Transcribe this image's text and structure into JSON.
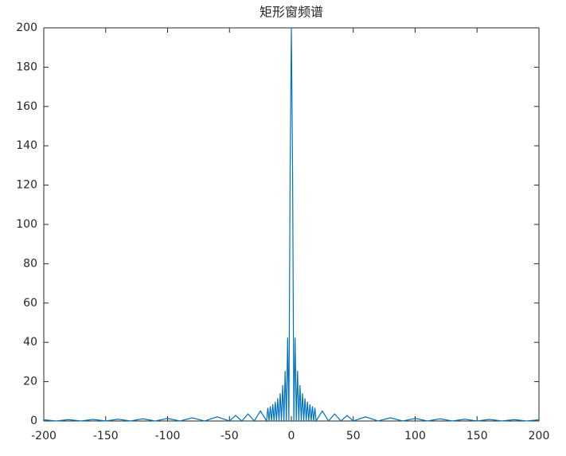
{
  "chart_data": {
    "type": "line",
    "title": "矩形窗频谱",
    "x": [
      -200,
      -190,
      -180,
      -170,
      -160,
      -150,
      -140,
      -130,
      -120,
      -110,
      -100,
      -90,
      -80,
      -70,
      -60,
      -50,
      -45,
      -40,
      -35,
      -30,
      -25,
      -20,
      -19,
      -18,
      -17,
      -16,
      -15,
      -14,
      -13,
      -12,
      -11,
      -10,
      -9,
      -8,
      -7,
      -6,
      -5,
      -4,
      -3,
      -2,
      -1,
      0,
      1,
      2,
      3,
      4,
      5,
      6,
      7,
      8,
      9,
      10,
      11,
      12,
      13,
      14,
      15,
      16,
      17,
      18,
      19,
      20,
      25,
      30,
      35,
      40,
      45,
      50,
      60,
      70,
      80,
      90,
      100,
      110,
      120,
      130,
      140,
      150,
      160,
      170,
      180,
      190,
      200
    ],
    "values": [
      0.6,
      0,
      0.7,
      0,
      0.8,
      0,
      0.9,
      0,
      1.1,
      0,
      1.3,
      0,
      1.6,
      0,
      2.1,
      0,
      2.8,
      0,
      3.6,
      0,
      5.1,
      0,
      6.7,
      0,
      7.5,
      0,
      8.5,
      0,
      9.8,
      0,
      11.6,
      0,
      14.1,
      0,
      18.2,
      0,
      25.5,
      0,
      42.4,
      0,
      127,
      200,
      127,
      0,
      42.4,
      0,
      25.5,
      0,
      18.2,
      0,
      14.1,
      0,
      11.6,
      0,
      9.8,
      0,
      8.5,
      0,
      7.5,
      0,
      6.7,
      0,
      5.1,
      0,
      3.6,
      0,
      2.8,
      0,
      2.1,
      0,
      1.6,
      0,
      1.3,
      0,
      1.1,
      0,
      0.9,
      0,
      0.8,
      0,
      0.7,
      0,
      0.6
    ],
    "color": "#0072bd",
    "xlim": [
      -200,
      200
    ],
    "xticks": [
      -200,
      -150,
      -100,
      -50,
      0,
      50,
      100,
      150,
      200
    ],
    "ylim": [
      0,
      200
    ],
    "yticks": [
      0,
      20,
      40,
      60,
      80,
      100,
      120,
      140,
      160,
      180,
      200
    ]
  }
}
